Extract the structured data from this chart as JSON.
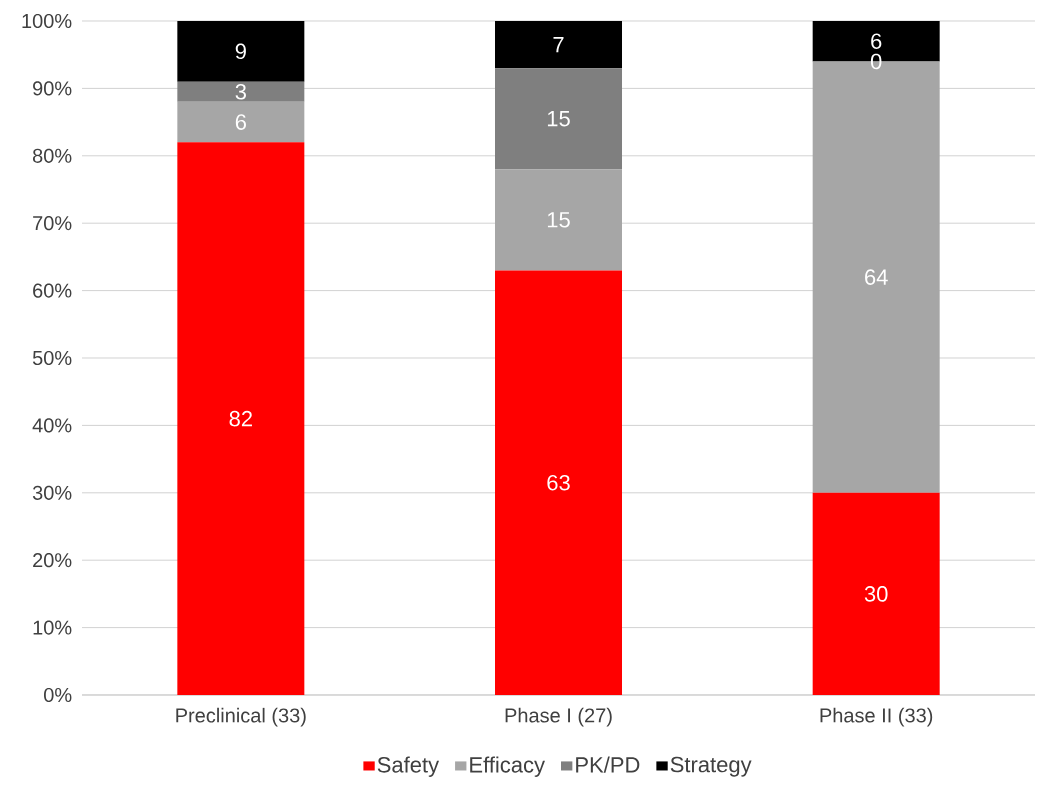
{
  "chart_data": {
    "type": "bar",
    "stacked": true,
    "categories": [
      "Preclinical (33)",
      "Phase I (27)",
      "Phase II (33)"
    ],
    "series": [
      {
        "name": "Safety",
        "color": "#ff0000",
        "values": [
          82,
          63,
          30
        ]
      },
      {
        "name": "Efficacy",
        "color": "#a6a6a6",
        "values": [
          6,
          15,
          64
        ]
      },
      {
        "name": "PK/PD",
        "color": "#7f7f7f",
        "values": [
          3,
          15,
          0
        ]
      },
      {
        "name": "Strategy",
        "color": "#000000",
        "values": [
          9,
          7,
          6
        ]
      }
    ],
    "ylim": [
      0,
      100
    ],
    "yticks": [
      {
        "value": 0,
        "label": "0%"
      },
      {
        "value": 10,
        "label": "10%"
      },
      {
        "value": 20,
        "label": "20%"
      },
      {
        "value": 30,
        "label": "30%"
      },
      {
        "value": 40,
        "label": "40%"
      },
      {
        "value": 50,
        "label": "50%"
      },
      {
        "value": 60,
        "label": "60%"
      },
      {
        "value": 70,
        "label": "70%"
      },
      {
        "value": 80,
        "label": "80%"
      },
      {
        "value": 90,
        "label": "90%"
      },
      {
        "value": 100,
        "label": "100%"
      }
    ],
    "grid": "y",
    "legend": "bottom",
    "data_labels": true
  }
}
